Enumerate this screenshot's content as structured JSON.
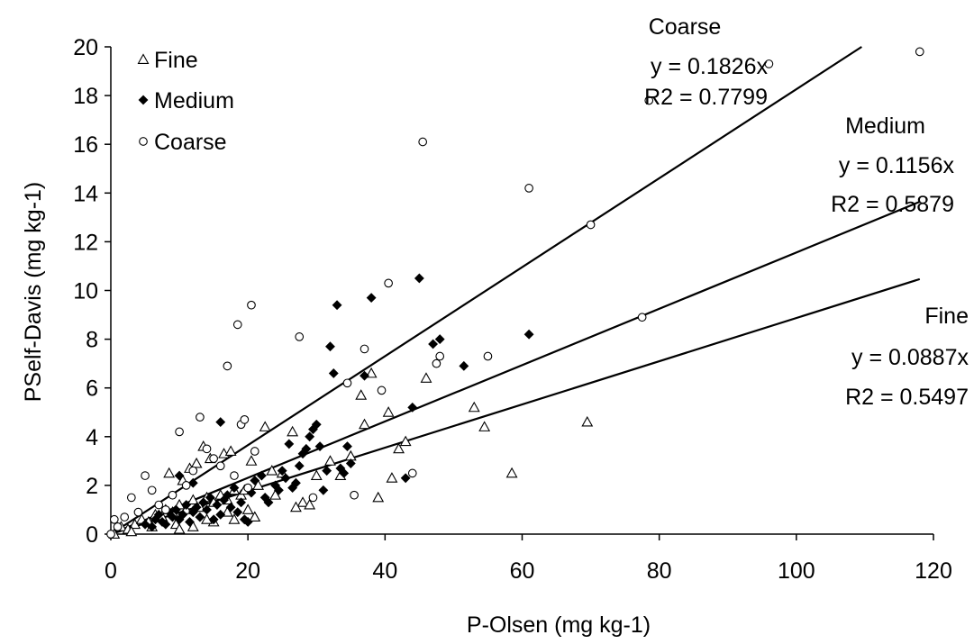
{
  "chart_data": {
    "type": "scatter",
    "xlabel": "P-Olsen  (mg kg-1)",
    "ylabel": "PSelf-Davis (mg kg-1)",
    "xlim": [
      0,
      120
    ],
    "ylim": [
      0,
      20
    ],
    "x_ticks": [
      "0",
      "20",
      "40",
      "60",
      "80",
      "100",
      "120"
    ],
    "y_ticks": [
      "0",
      "2",
      "4",
      "6",
      "8",
      "10",
      "12",
      "14",
      "16",
      "18",
      "20"
    ],
    "grid": false,
    "legend_position": "top-left",
    "series": [
      {
        "name": "Fine",
        "marker": "open-triangle",
        "trendline_slope": 0.0887,
        "annotation": [
          "Fine",
          "y = 0.0887x",
          "R2 = 0.5497"
        ],
        "points": [
          [
            0.5,
            0.0
          ],
          [
            1.5,
            0.3
          ],
          [
            2.5,
            0.2
          ],
          [
            3.5,
            0.4
          ],
          [
            4.5,
            0.6
          ],
          [
            5.5,
            0.5
          ],
          [
            6.5,
            0.8
          ],
          [
            7.5,
            0.7
          ],
          [
            8,
            1.0
          ],
          [
            9,
            0.9
          ],
          [
            10,
            1.2
          ],
          [
            11,
            1.0
          ],
          [
            12,
            1.4
          ],
          [
            13,
            1.1
          ],
          [
            14,
            1.5
          ],
          [
            15,
            1.3
          ],
          [
            16,
            1.6
          ],
          [
            17,
            1.4
          ],
          [
            18,
            1.8
          ],
          [
            19,
            1.6
          ],
          [
            8.5,
            2.5
          ],
          [
            10.5,
            2.2
          ],
          [
            11.5,
            2.7
          ],
          [
            12.5,
            2.9
          ],
          [
            13.5,
            3.6
          ],
          [
            14.5,
            3.1
          ],
          [
            16.5,
            3.3
          ],
          [
            17.5,
            3.4
          ],
          [
            19.5,
            1.8
          ],
          [
            20.5,
            3.0
          ],
          [
            21.5,
            2.0
          ],
          [
            22.5,
            4.4
          ],
          [
            23.5,
            2.6
          ],
          [
            25,
            2.5
          ],
          [
            26.5,
            4.2
          ],
          [
            28,
            1.3
          ],
          [
            29,
            1.2
          ],
          [
            30,
            2.4
          ],
          [
            32,
            3.0
          ],
          [
            33.5,
            2.4
          ],
          [
            35,
            3.2
          ],
          [
            36.5,
            5.7
          ],
          [
            37,
            4.5
          ],
          [
            38,
            6.6
          ],
          [
            39,
            1.5
          ],
          [
            40.5,
            5.0
          ],
          [
            41,
            2.3
          ],
          [
            42,
            3.5
          ],
          [
            43,
            3.8
          ],
          [
            46,
            6.4
          ],
          [
            53,
            5.2
          ],
          [
            54.5,
            4.4
          ],
          [
            58.5,
            2.5
          ],
          [
            69.5,
            4.6
          ],
          [
            9.5,
            0.4
          ],
          [
            12,
            0.3
          ],
          [
            15,
            0.5
          ],
          [
            18,
            0.6
          ],
          [
            21,
            0.7
          ],
          [
            24,
            1.6
          ],
          [
            27,
            1.1
          ],
          [
            3,
            0.1
          ],
          [
            6,
            0.3
          ],
          [
            10,
            0.2
          ],
          [
            14,
            0.6
          ],
          [
            17,
            0.9
          ],
          [
            20,
            1.0
          ]
        ]
      },
      {
        "name": "Medium",
        "marker": "filled-diamond",
        "trendline_slope": 0.1156,
        "annotation": [
          "Medium",
          "y = 0.1156x",
          "R2 = 0.5879"
        ],
        "points": [
          [
            5,
            0.4
          ],
          [
            6,
            0.3
          ],
          [
            6.5,
            0.6
          ],
          [
            7,
            0.8
          ],
          [
            7.5,
            0.5
          ],
          [
            8,
            0.4
          ],
          [
            8.5,
            0.9
          ],
          [
            9,
            0.7
          ],
          [
            9.5,
            1.0
          ],
          [
            10,
            0.6
          ],
          [
            10.5,
            0.8
          ],
          [
            11,
            1.2
          ],
          [
            11.5,
            0.5
          ],
          [
            12,
            0.9
          ],
          [
            12.5,
            1.1
          ],
          [
            13,
            0.7
          ],
          [
            13.5,
            1.3
          ],
          [
            14,
            1.0
          ],
          [
            14.5,
            1.5
          ],
          [
            15,
            0.6
          ],
          [
            15.5,
            1.2
          ],
          [
            16,
            0.8
          ],
          [
            16.5,
            1.4
          ],
          [
            17,
            1.6
          ],
          [
            17.5,
            1.1
          ],
          [
            18,
            1.9
          ],
          [
            18.5,
            0.9
          ],
          [
            19,
            1.3
          ],
          [
            19.5,
            0.6
          ],
          [
            20,
            0.5
          ],
          [
            20.5,
            1.7
          ],
          [
            21,
            2.2
          ],
          [
            22,
            2.4
          ],
          [
            22.5,
            1.5
          ],
          [
            23,
            1.3
          ],
          [
            24,
            2.0
          ],
          [
            24.5,
            1.8
          ],
          [
            25,
            2.6
          ],
          [
            25.5,
            2.3
          ],
          [
            26,
            3.7
          ],
          [
            26.5,
            1.9
          ],
          [
            27,
            2.1
          ],
          [
            27.5,
            2.8
          ],
          [
            28,
            3.3
          ],
          [
            28.5,
            3.5
          ],
          [
            29,
            4.0
          ],
          [
            29.5,
            4.3
          ],
          [
            30,
            4.5
          ],
          [
            30.5,
            3.6
          ],
          [
            31,
            1.8
          ],
          [
            31.5,
            2.6
          ],
          [
            32,
            7.7
          ],
          [
            32.5,
            6.6
          ],
          [
            33,
            9.4
          ],
          [
            33.5,
            2.7
          ],
          [
            34,
            2.5
          ],
          [
            34.5,
            3.6
          ],
          [
            35,
            2.9
          ],
          [
            37,
            6.5
          ],
          [
            38,
            9.7
          ],
          [
            43,
            2.3
          ],
          [
            44,
            5.2
          ],
          [
            45,
            10.5
          ],
          [
            47,
            7.8
          ],
          [
            48,
            8.0
          ],
          [
            51.5,
            6.9
          ],
          [
            61,
            8.2
          ],
          [
            10,
            2.4
          ],
          [
            12,
            2.1
          ],
          [
            16,
            4.6
          ]
        ]
      },
      {
        "name": "Coarse",
        "marker": "open-circle",
        "trendline_slope": 0.1826,
        "annotation": [
          "Coarse",
          "y = 0.1826x",
          "R2 = 0.7799"
        ],
        "points": [
          [
            0,
            0.0
          ],
          [
            0.5,
            0.6
          ],
          [
            1,
            0.3
          ],
          [
            2,
            0.7
          ],
          [
            3,
            1.5
          ],
          [
            4,
            0.9
          ],
          [
            5,
            2.4
          ],
          [
            6,
            1.8
          ],
          [
            7,
            1.2
          ],
          [
            8,
            1.0
          ],
          [
            9,
            1.6
          ],
          [
            10,
            4.2
          ],
          [
            11,
            2.0
          ],
          [
            12,
            2.6
          ],
          [
            13,
            4.8
          ],
          [
            14,
            3.5
          ],
          [
            15,
            3.1
          ],
          [
            16,
            2.8
          ],
          [
            17,
            6.9
          ],
          [
            18,
            2.4
          ],
          [
            18.5,
            8.6
          ],
          [
            19,
            4.5
          ],
          [
            19.5,
            4.7
          ],
          [
            20,
            1.9
          ],
          [
            20.5,
            9.4
          ],
          [
            21,
            3.4
          ],
          [
            27.5,
            8.1
          ],
          [
            29.5,
            1.5
          ],
          [
            34.5,
            6.2
          ],
          [
            35.5,
            1.6
          ],
          [
            37,
            7.6
          ],
          [
            39.5,
            5.9
          ],
          [
            40.5,
            10.3
          ],
          [
            44,
            2.5
          ],
          [
            45.5,
            16.1
          ],
          [
            47.5,
            7.0
          ],
          [
            48,
            7.3
          ],
          [
            55,
            7.3
          ],
          [
            61,
            14.2
          ],
          [
            70,
            12.7
          ],
          [
            77.5,
            8.9
          ],
          [
            78.5,
            17.8
          ],
          [
            96,
            19.3
          ],
          [
            118,
            19.8
          ]
        ]
      }
    ]
  }
}
